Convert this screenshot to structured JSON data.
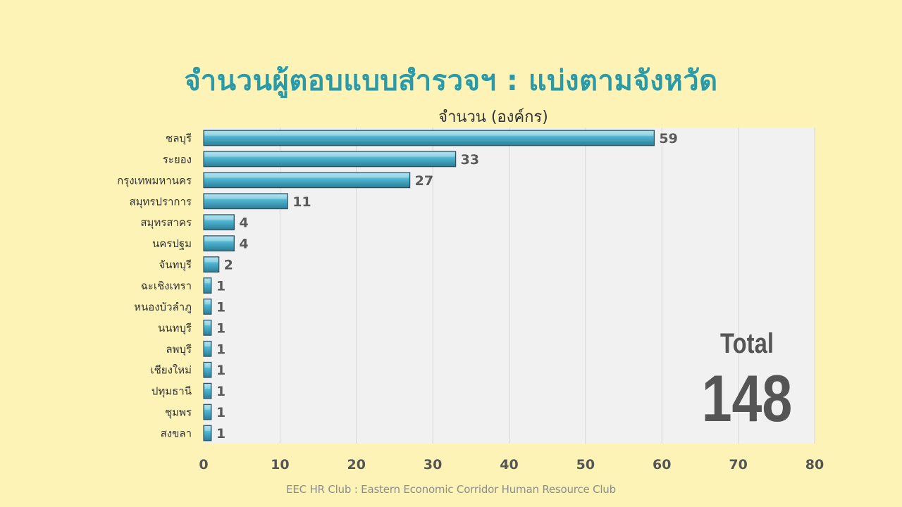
{
  "slide": {
    "title": "จำนวนผู้ตอบแบบสำรวจฯ : แบ่งตามจังหวัด",
    "footer": "EEC HR Club : Eastern Economic Corridor Human Resource Club",
    "total_label": "Total",
    "total_value": "148"
  },
  "colors": {
    "title": "#2a9aa8",
    "bar": "#4db3cf",
    "plot_background": "#f1f1f1",
    "page_background": "#fdf3b7"
  },
  "chart_data": {
    "type": "bar",
    "orientation": "horizontal",
    "xlabel": "จำนวน (องค์กร)",
    "ylabel": "",
    "xlim": [
      0,
      80
    ],
    "x_ticks": [
      0,
      10,
      20,
      30,
      40,
      50,
      60,
      70,
      80
    ],
    "grid": "vertical",
    "categories": [
      "ชลบุรี",
      "ระยอง",
      "กรุงเทพมหานคร",
      "สมุทรปราการ",
      "สมุทรสาคร",
      "นครปฐม",
      "จันทบุรี",
      "ฉะเชิงเทรา",
      "หนองบัวลำภู",
      "นนทบุรี",
      "ลพบุรี",
      "เชียงใหม่",
      "ปทุมธานี",
      "ชุมพร",
      "สงขลา"
    ],
    "values": [
      59,
      33,
      27,
      11,
      4,
      4,
      2,
      1,
      1,
      1,
      1,
      1,
      1,
      1,
      1
    ],
    "data_labels": true
  }
}
